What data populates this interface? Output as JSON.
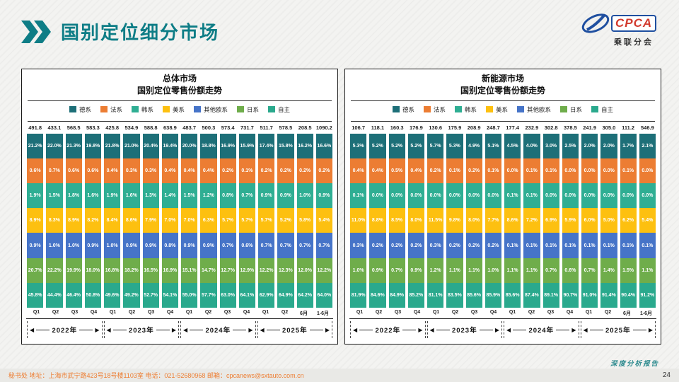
{
  "page": {
    "title": "国别定位细分市场",
    "report_label": "深度分析报告",
    "page_number": "24",
    "footer_contact": "秘书处   地址：上海市武宁路423号18号楼1103室  电话：021-52680968   邮箱：cpcanews@sxtauto.com.cn",
    "logo": {
      "name": "CPCA",
      "sub": "乘联分会"
    },
    "accent_teal": "#0e7d86",
    "footer_orange": "#ed7d31"
  },
  "chart_data": [
    {
      "type": "bar",
      "variant": "stacked-100-equal-bands",
      "title": "总体市场",
      "subtitle": "国别定位零售份额走势",
      "legend_position": "top",
      "categories": [
        "Q1",
        "Q2",
        "Q3",
        "Q4",
        "Q1",
        "Q2",
        "Q3",
        "Q4",
        "Q1",
        "Q2",
        "Q3",
        "Q4",
        "Q1",
        "Q2",
        "6月",
        "1-6月"
      ],
      "year_groups": [
        {
          "label": "2022年",
          "span": 4
        },
        {
          "label": "2023年",
          "span": 4
        },
        {
          "label": "2024年",
          "span": 4
        },
        {
          "label": "2025年",
          "span": 4
        }
      ],
      "totals": [
        491.8,
        433.1,
        568.5,
        583.3,
        425.8,
        534.9,
        588.8,
        638.9,
        483.7,
        500.3,
        573.4,
        731.7,
        511.7,
        578.5,
        208.5,
        1090.2
      ],
      "series": [
        {
          "name": "德系",
          "color": "#1d6f78",
          "values": [
            21.2,
            22.0,
            21.3,
            19.8,
            21.8,
            21.0,
            20.4,
            19.4,
            20.0,
            18.8,
            16.9,
            15.9,
            17.4,
            15.8,
            16.2,
            16.6
          ]
        },
        {
          "name": "法系",
          "color": "#ec7d33",
          "values": [
            0.6,
            0.7,
            0.6,
            0.6,
            0.4,
            0.3,
            0.3,
            0.4,
            0.4,
            0.4,
            0.2,
            0.1,
            0.2,
            0.2,
            0.2,
            0.2
          ]
        },
        {
          "name": "韩系",
          "color": "#2fae93",
          "values": [
            1.9,
            1.5,
            1.8,
            1.6,
            1.9,
            1.6,
            1.3,
            1.4,
            1.5,
            1.2,
            0.8,
            0.7,
            0.9,
            0.9,
            1.0,
            0.9
          ]
        },
        {
          "name": "美系",
          "color": "#fdc010",
          "values": [
            8.9,
            8.3,
            8.9,
            8.2,
            8.4,
            8.6,
            7.9,
            7.0,
            7.0,
            6.3,
            5.7,
            5.7,
            5.7,
            5.2,
            5.8,
            5.4
          ]
        },
        {
          "name": "其他欧系",
          "color": "#4674c8",
          "values": [
            0.9,
            1.0,
            1.0,
            0.9,
            1.0,
            0.9,
            0.9,
            0.8,
            0.9,
            0.9,
            0.7,
            0.6,
            0.7,
            0.7,
            0.7,
            0.7
          ]
        },
        {
          "name": "日系",
          "color": "#6fad4b",
          "values": [
            20.7,
            22.2,
            19.9,
            18.0,
            16.8,
            18.2,
            16.5,
            16.9,
            15.1,
            14.7,
            12.7,
            12.9,
            12.2,
            12.3,
            12.0,
            12.2
          ]
        },
        {
          "name": "自主",
          "color": "#2aa98d",
          "values": [
            45.8,
            44.4,
            46.4,
            50.8,
            49.6,
            49.2,
            52.7,
            54.1,
            55.0,
            57.7,
            63.0,
            64.1,
            62.9,
            64.9,
            64.2,
            64.0
          ]
        }
      ]
    },
    {
      "type": "bar",
      "variant": "stacked-100-equal-bands",
      "title": "新能源市场",
      "subtitle": "国别定位零售份额走势",
      "legend_position": "top",
      "categories": [
        "Q1",
        "Q2",
        "Q3",
        "Q4",
        "Q1",
        "Q2",
        "Q3",
        "Q4",
        "Q1",
        "Q2",
        "Q3",
        "Q4",
        "Q1",
        "Q2",
        "6月",
        "1-6月"
      ],
      "year_groups": [
        {
          "label": "2022年",
          "span": 4
        },
        {
          "label": "2023年",
          "span": 4
        },
        {
          "label": "2024年",
          "span": 4
        },
        {
          "label": "2025年",
          "span": 4
        }
      ],
      "totals": [
        106.7,
        118.1,
        160.3,
        176.9,
        130.6,
        175.9,
        208.9,
        248.7,
        177.4,
        232.9,
        302.8,
        378.5,
        241.9,
        305.0,
        111.2,
        546.9
      ],
      "series": [
        {
          "name": "德系",
          "color": "#1d6f78",
          "values": [
            5.3,
            5.2,
            5.2,
            5.2,
            5.7,
            5.3,
            4.9,
            5.1,
            4.5,
            4.0,
            3.0,
            2.5,
            2.0,
            2.0,
            1.7,
            2.1
          ]
        },
        {
          "name": "法系",
          "color": "#ec7d33",
          "values": [
            0.4,
            0.4,
            0.5,
            0.4,
            0.2,
            0.1,
            0.2,
            0.1,
            0.0,
            0.1,
            0.1,
            0.0,
            0.0,
            0.0,
            0.1,
            0.0
          ]
        },
        {
          "name": "韩系",
          "color": "#2fae93",
          "values": [
            0.1,
            0.0,
            0.0,
            0.0,
            0.0,
            0.0,
            0.0,
            0.0,
            0.1,
            0.1,
            0.0,
            0.0,
            0.0,
            0.0,
            0.0,
            0.0
          ]
        },
        {
          "name": "美系",
          "color": "#fdc010",
          "values": [
            11.0,
            8.8,
            8.5,
            8.0,
            11.5,
            9.8,
            8.0,
            7.7,
            8.6,
            7.2,
            6.9,
            5.9,
            6.0,
            5.0,
            6.2,
            5.4
          ]
        },
        {
          "name": "其他欧系",
          "color": "#4674c8",
          "values": [
            0.3,
            0.2,
            0.2,
            0.2,
            0.3,
            0.2,
            0.2,
            0.2,
            0.1,
            0.1,
            0.1,
            0.1,
            0.1,
            0.1,
            0.1,
            0.1
          ]
        },
        {
          "name": "日系",
          "color": "#6fad4b",
          "values": [
            1.0,
            0.9,
            0.7,
            0.9,
            1.2,
            1.1,
            1.1,
            1.0,
            1.1,
            1.1,
            0.7,
            0.6,
            0.7,
            1.4,
            1.5,
            1.1
          ]
        },
        {
          "name": "自主",
          "color": "#2aa98d",
          "values": [
            81.9,
            84.6,
            84.9,
            85.2,
            81.1,
            83.5,
            85.6,
            85.9,
            85.6,
            87.4,
            89.1,
            90.7,
            91.0,
            91.4,
            90.4,
            91.2
          ]
        }
      ]
    }
  ]
}
